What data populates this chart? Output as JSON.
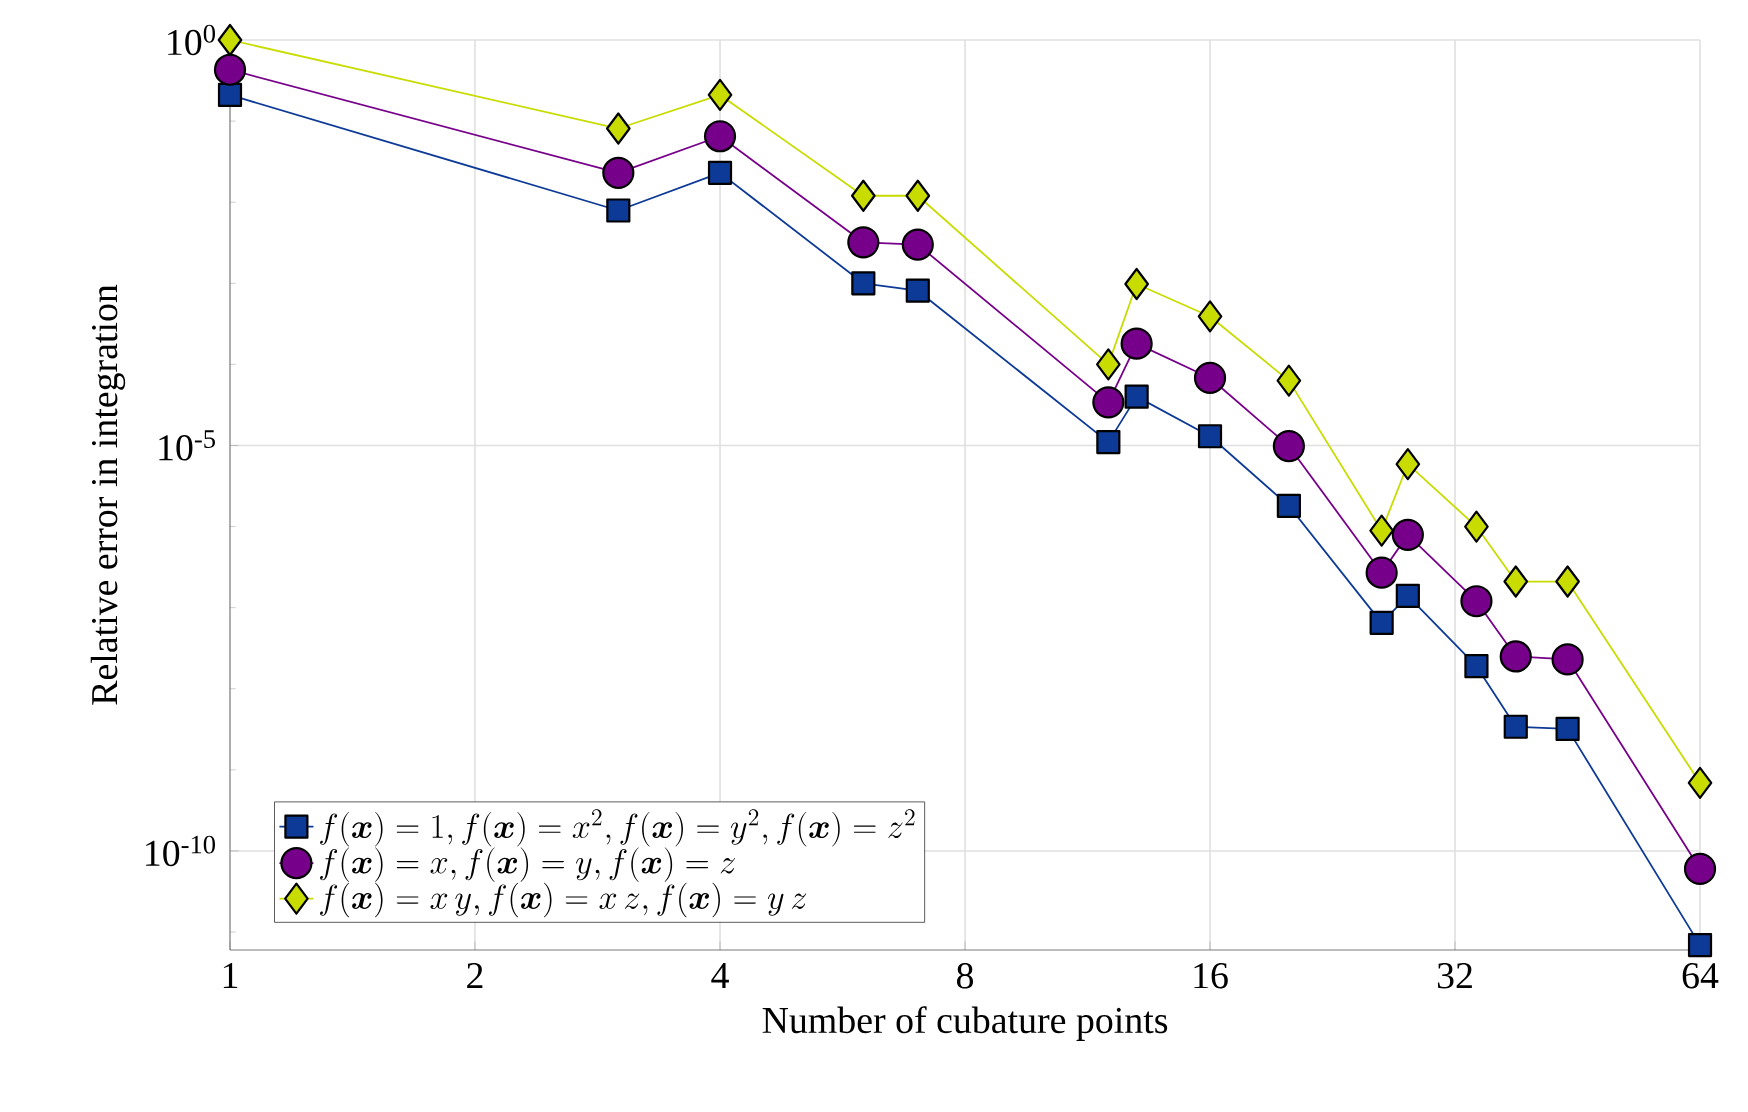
{
  "chart_data": {
    "type": "line",
    "xlabel": "Number of cubature points",
    "ylabel": "Relative error in integration",
    "x": [
      1,
      3,
      4,
      6,
      7,
      12,
      13,
      16,
      20,
      26,
      28,
      34,
      38,
      44,
      64
    ],
    "series": [
      {
        "name": "f(\\boldsymbol{x}) = 1, f(\\boldsymbol{x}) = x^2, f(\\boldsymbol{x}) = y^2, f(\\boldsymbol{x}) = z^2",
        "color": "#0d3a96",
        "marker": "square",
        "values": [
          0.21,
          0.0079,
          0.023,
          0.001,
          0.00081,
          1.1e-05,
          4e-05,
          1.3e-05,
          1.8e-06,
          6.5e-08,
          1.4e-07,
          1.9e-08,
          3.4e-09,
          3.2e-09,
          6.9e-12
        ]
      },
      {
        "name": "f(\\boldsymbol{x}) = x, f(\\boldsymbol{x}) = y, f(\\boldsymbol{x}) = z",
        "color": "#77008a",
        "marker": "circle",
        "values": [
          0.43,
          0.023,
          0.065,
          0.0032,
          0.003,
          3.4e-05,
          0.00018,
          6.8e-05,
          9.8e-06,
          2.7e-07,
          7.9e-07,
          1.2e-07,
          2.5e-08,
          2.3e-08,
          6e-11
        ]
      },
      {
        "name": "f(\\boldsymbol{x}) = x\\,y, f(\\boldsymbol{x}) = x\\,z, f(\\boldsymbol{x}) = y\\,z",
        "color": "#c8dc00",
        "marker": "diamond",
        "values": [
          1.0,
          0.081,
          0.21,
          0.012,
          0.012,
          0.0001,
          0.00098,
          0.00039,
          6.3e-05,
          8.9e-07,
          5.9e-06,
          1e-06,
          2.1e-07,
          2.1e-07,
          6.9e-10
        ]
      }
    ],
    "log": "xy",
    "xlim": [
      1,
      64
    ],
    "ylim": [
      6e-12,
      1
    ],
    "xticks": [
      1,
      2,
      4,
      8,
      16,
      32,
      64
    ],
    "yticks": [
      {
        "value": 1,
        "label": "10$^{0}$"
      },
      {
        "value": 0.1,
        "label": null
      },
      {
        "value": 0.01,
        "label": null
      },
      {
        "value": 0.001,
        "label": null
      },
      {
        "value": 0.0001,
        "label": null
      },
      {
        "value": 1e-05,
        "label": "10$^{-5}$"
      },
      {
        "value": 1e-06,
        "label": null
      },
      {
        "value": 1e-07,
        "label": null
      },
      {
        "value": 1e-08,
        "label": null
      },
      {
        "value": 1e-09,
        "label": null
      },
      {
        "value": 1e-10,
        "label": "10$^{-10}$"
      },
      {
        "value": 1e-11,
        "label": null
      }
    ],
    "grid": true,
    "legend": "bottom left"
  }
}
